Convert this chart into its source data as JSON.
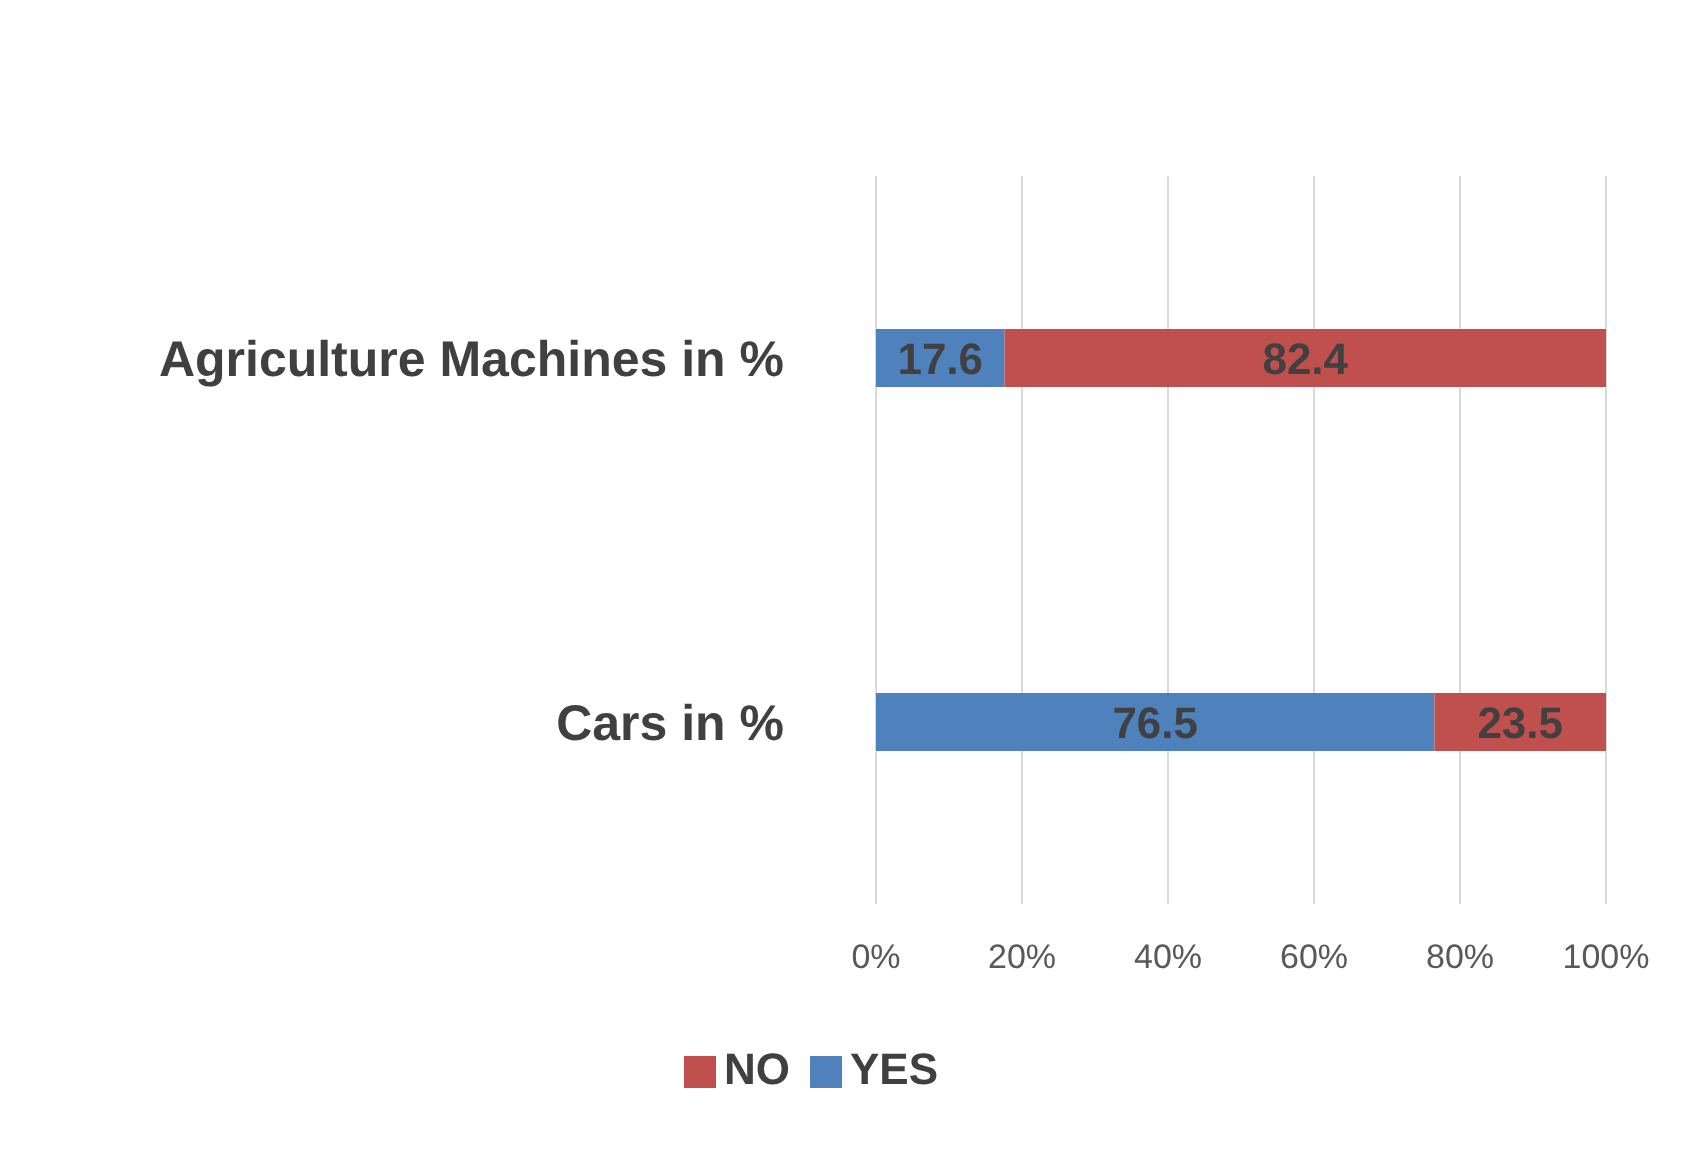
{
  "chart_data": {
    "type": "bar",
    "orientation": "horizontal",
    "stacked": true,
    "categories": [
      "Agriculture Machines in  %",
      "Cars in %"
    ],
    "series": [
      {
        "name": "YES",
        "color": "#4f81bd",
        "values": [
          17.6,
          76.5
        ]
      },
      {
        "name": "NO",
        "color": "#c0504d",
        "values": [
          82.4,
          23.5
        ]
      }
    ],
    "xlim": [
      0,
      100
    ],
    "xticks": [
      {
        "value": 0,
        "label": "0%"
      },
      {
        "value": 20,
        "label": "20%"
      },
      {
        "value": 40,
        "label": "40%"
      },
      {
        "value": 60,
        "label": "60%"
      },
      {
        "value": 80,
        "label": "80%"
      },
      {
        "value": 100,
        "label": "100%"
      }
    ],
    "grid": "x",
    "legend": "bottom",
    "data_labels": true
  }
}
